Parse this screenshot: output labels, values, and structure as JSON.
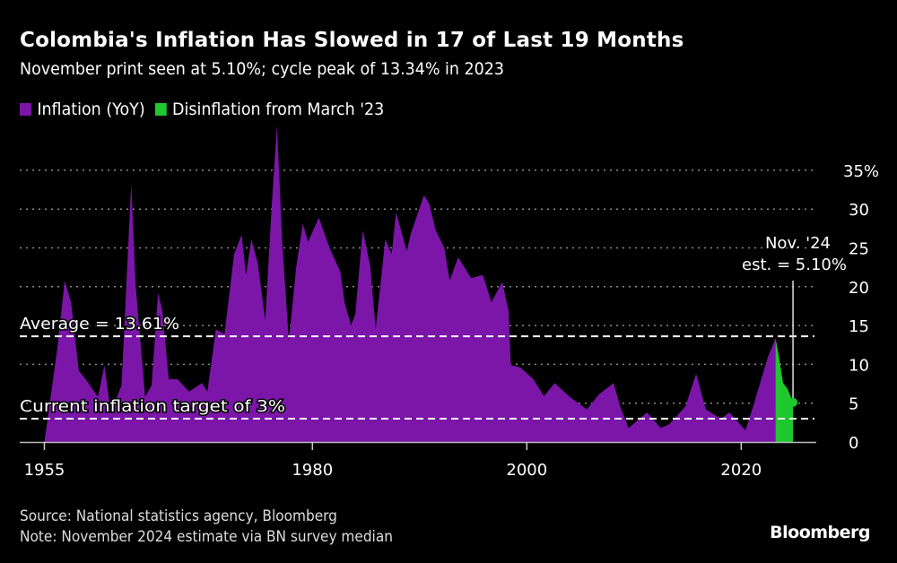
{
  "title": "Colombia's Inflation Has Slowed in 17 of Last 19 Months",
  "subtitle": "November print seen at 5.10%; cycle peak of 13.34% in 2023",
  "legend": [
    {
      "label": "Inflation (YoY)",
      "color": "#7b16a8"
    },
    {
      "label": "Disinflation from March '23",
      "color": "#1ec82e"
    }
  ],
  "source": "Source: National statistics agency, Bloomberg",
  "note": "Note: November 2024 estimate via BN survey median",
  "logo": "Bloomberg",
  "chart_data": {
    "type": "area",
    "title": "Colombia's Inflation Has Slowed in 17 of Last 19 Months",
    "xlabel": "",
    "ylabel": "",
    "xlim": [
      1952.7,
      2027
    ],
    "ylim": [
      0,
      35
    ],
    "x_ticks": [
      1955,
      1980,
      2000,
      2020
    ],
    "x_tick_labels": [
      "1955",
      "1980",
      "2000",
      "2020"
    ],
    "y_ticks": [
      0,
      5,
      10,
      15,
      20,
      25,
      30,
      35
    ],
    "y_tick_labels": [
      "0",
      "5",
      "10",
      "15",
      "20",
      "25",
      "30",
      "35%"
    ],
    "grid": "horizontal dotted",
    "legend_position": "top-left",
    "series": [
      {
        "name": "Inflation (YoY)",
        "color": "#7b16a8",
        "points": [
          [
            1955.0,
            0
          ],
          [
            1955.5,
            5
          ],
          [
            1956.2,
            12
          ],
          [
            1956.9,
            20.8
          ],
          [
            1957.5,
            17.9
          ],
          [
            1958.2,
            9.2
          ],
          [
            1958.9,
            8
          ],
          [
            1960.0,
            5.8
          ],
          [
            1960.6,
            9.9
          ],
          [
            1961.2,
            3.8
          ],
          [
            1962.2,
            7.3
          ],
          [
            1963.1,
            33.3
          ],
          [
            1963.5,
            20.3
          ],
          [
            1964.4,
            5.8
          ],
          [
            1965.0,
            7.3
          ],
          [
            1965.6,
            19.2
          ],
          [
            1966.0,
            16.9
          ],
          [
            1966.6,
            8.1
          ],
          [
            1967.4,
            8.1
          ],
          [
            1968.5,
            6.5
          ],
          [
            1969.7,
            7.6
          ],
          [
            1970.2,
            6.5
          ],
          [
            1971.0,
            14.5
          ],
          [
            1971.8,
            13.9
          ],
          [
            1972.7,
            24.2
          ],
          [
            1973.4,
            26.7
          ],
          [
            1973.8,
            21.5
          ],
          [
            1974.3,
            26.1
          ],
          [
            1974.9,
            23.1
          ],
          [
            1975.6,
            15.7
          ],
          [
            1976.2,
            30.4
          ],
          [
            1976.7,
            40.8
          ],
          [
            1977.2,
            25.4
          ],
          [
            1977.8,
            13
          ],
          [
            1978.5,
            22.6
          ],
          [
            1979.1,
            28.1
          ],
          [
            1979.6,
            25.8
          ],
          [
            1980.6,
            28.9
          ],
          [
            1981.6,
            25
          ],
          [
            1982.6,
            21.9
          ],
          [
            1983.0,
            18
          ],
          [
            1983.6,
            15
          ],
          [
            1984.0,
            16.5
          ],
          [
            1984.7,
            27.3
          ],
          [
            1985.4,
            22.6
          ],
          [
            1985.9,
            14.5
          ],
          [
            1986.8,
            26.1
          ],
          [
            1987.4,
            24.2
          ],
          [
            1987.8,
            29.6
          ],
          [
            1988.8,
            24.6
          ],
          [
            1989.2,
            26.9
          ],
          [
            1990.4,
            31.8
          ],
          [
            1990.9,
            30.7
          ],
          [
            1991.5,
            27.3
          ],
          [
            1992.3,
            25
          ],
          [
            1992.8,
            20.8
          ],
          [
            1993.6,
            23.8
          ],
          [
            1994.8,
            21.1
          ],
          [
            1995.9,
            21.5
          ],
          [
            1996.7,
            18
          ],
          [
            1997.7,
            20.6
          ],
          [
            1998.3,
            16.9
          ],
          [
            1998.5,
            9.9
          ],
          [
            1999.4,
            9.6
          ],
          [
            2000.6,
            8.1
          ],
          [
            2001.6,
            5.9
          ],
          [
            2002.6,
            7.6
          ],
          [
            2004.0,
            5.8
          ],
          [
            2005.6,
            4.2
          ],
          [
            2006.7,
            6.1
          ],
          [
            2008.1,
            7.6
          ],
          [
            2008.7,
            4.6
          ],
          [
            2009.5,
            1.8
          ],
          [
            2011.2,
            3.8
          ],
          [
            2012.5,
            1.8
          ],
          [
            2013.3,
            2.3
          ],
          [
            2014.8,
            4.6
          ],
          [
            2015.8,
            8.8
          ],
          [
            2016.7,
            4.2
          ],
          [
            2018.1,
            3
          ],
          [
            2018.9,
            3.8
          ],
          [
            2020.4,
            1.5
          ],
          [
            2021.2,
            5
          ],
          [
            2022.5,
            11
          ],
          [
            2023.2,
            13.34
          ]
        ]
      },
      {
        "name": "Disinflation from March '23",
        "color": "#1ec82e",
        "points": [
          [
            2023.2,
            13.34
          ],
          [
            2023.5,
            11.1
          ],
          [
            2023.9,
            7.6
          ],
          [
            2024.3,
            6.9
          ],
          [
            2024.83,
            5.1
          ]
        ]
      }
    ],
    "reference_lines": [
      {
        "label": "Average = 13.61%",
        "value": 13.61
      },
      {
        "label": "Current inflation target of 3%",
        "value": 3
      }
    ],
    "annotations": [
      {
        "lines": [
          "Nov. '24",
          "est. = 5.10%"
        ],
        "x": 2024.83,
        "y": 5.1
      }
    ]
  }
}
